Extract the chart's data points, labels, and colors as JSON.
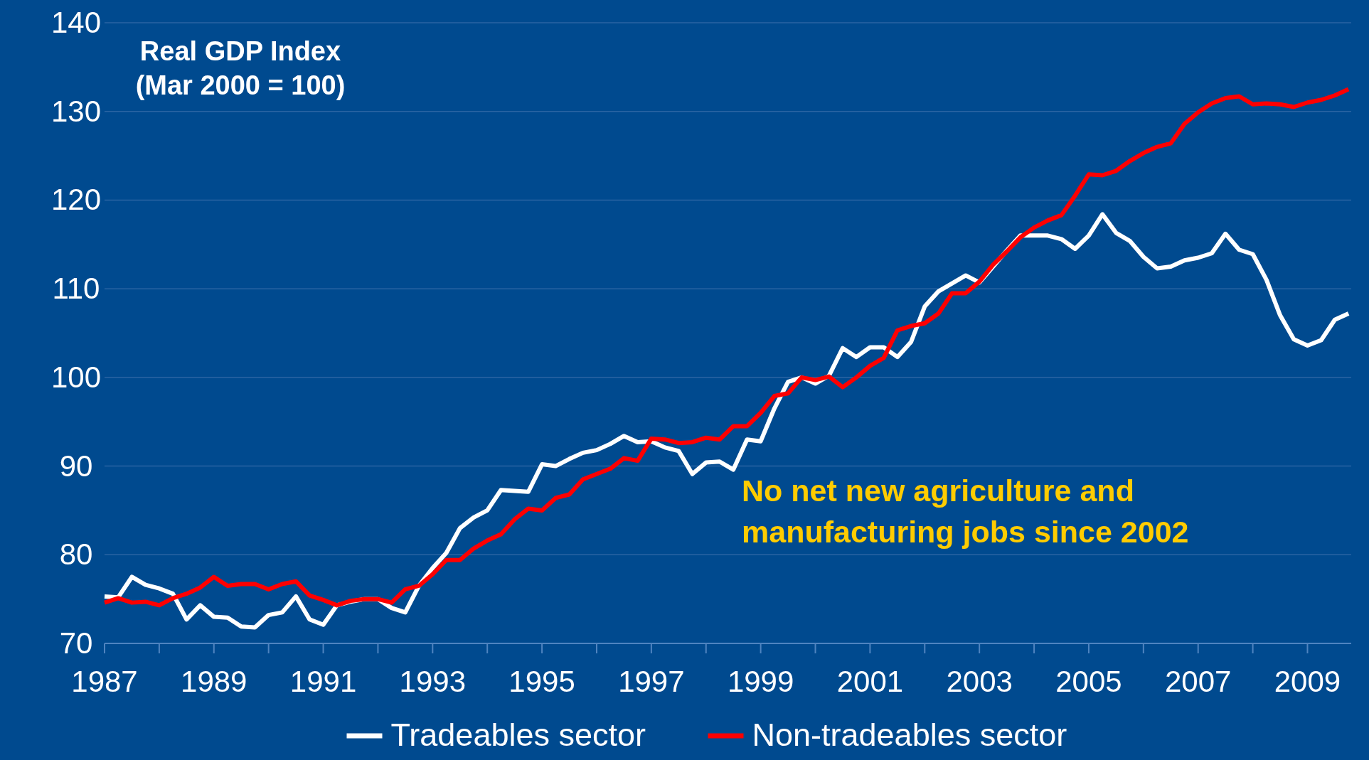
{
  "chart_data": {
    "type": "line",
    "title": "Real GDP Index",
    "subtitle": "(Mar 2000 = 100)",
    "annotations": [
      "No net new agriculture and\nmanufacturing jobs since 2002"
    ],
    "x": [
      1987,
      1987.25,
      1987.5,
      1987.75,
      1988,
      1988.25,
      1988.5,
      1988.75,
      1989,
      1989.25,
      1989.5,
      1989.75,
      1990,
      1990.25,
      1990.5,
      1990.75,
      1991,
      1991.25,
      1991.5,
      1991.75,
      1992,
      1992.25,
      1992.5,
      1992.75,
      1993,
      1993.25,
      1993.5,
      1993.75,
      1994,
      1994.25,
      1994.5,
      1994.75,
      1995,
      1995.25,
      1995.5,
      1995.75,
      1996,
      1996.25,
      1996.5,
      1996.75,
      1997,
      1997.25,
      1997.5,
      1997.75,
      1998,
      1998.25,
      1998.5,
      1998.75,
      1999,
      1999.25,
      1999.5,
      1999.75,
      2000,
      2000.25,
      2000.5,
      2000.75,
      2001,
      2001.25,
      2001.5,
      2001.75,
      2002,
      2002.25,
      2002.5,
      2002.75,
      2003,
      2003.25,
      2003.5,
      2003.75,
      2004,
      2004.25,
      2004.5,
      2004.75,
      2005,
      2005.25,
      2005.5,
      2005.75,
      2006,
      2006.25,
      2006.5,
      2006.75,
      2007,
      2007.25,
      2007.5,
      2007.75,
      2008,
      2008.25,
      2008.5,
      2008.75,
      2009,
      2009.25,
      2009.5,
      2009.75
    ],
    "series": [
      {
        "name": "Tradeables sector",
        "color": "#ffffff",
        "values": [
          75.3,
          75.2,
          77.5,
          76.6,
          76.2,
          75.6,
          72.7,
          74.3,
          73.0,
          72.9,
          71.9,
          71.8,
          73.2,
          73.5,
          75.3,
          72.7,
          72.1,
          74.3,
          74.7,
          75.0,
          75.0,
          74.0,
          73.5,
          76.5,
          78.5,
          80.2,
          83.0,
          84.2,
          85.0,
          87.3,
          87.2,
          87.1,
          90.2,
          90.0,
          90.8,
          91.5,
          91.8,
          92.5,
          93.4,
          92.7,
          92.8,
          92.1,
          91.7,
          89.1,
          90.4,
          90.5,
          89.6,
          93.0,
          92.8,
          96.5,
          99.5,
          100.0,
          99.3,
          100.2,
          103.3,
          102.3,
          103.4,
          103.4,
          102.3,
          104.0,
          108.0,
          109.7,
          110.6,
          111.5,
          110.7,
          112.5,
          114.3,
          116.0,
          116.0,
          116.0,
          115.6,
          114.5,
          116.0,
          118.4,
          116.3,
          115.4,
          113.6,
          112.3,
          112.5,
          113.2,
          113.5,
          114.0,
          116.2,
          114.4,
          113.9,
          111.0,
          107.0,
          104.3,
          103.6,
          104.2,
          106.5,
          107.2
        ]
      },
      {
        "name": "Non-tradeables sector",
        "color": "#ff0000",
        "values": [
          74.6,
          75.1,
          74.6,
          74.7,
          74.3,
          75.1,
          75.6,
          76.3,
          77.5,
          76.5,
          76.7,
          76.7,
          76.1,
          76.7,
          77.0,
          75.4,
          74.9,
          74.3,
          74.8,
          75.0,
          75.0,
          74.6,
          76.1,
          76.5,
          77.8,
          79.4,
          79.4,
          80.7,
          81.6,
          82.3,
          84.0,
          85.2,
          85.0,
          86.4,
          86.8,
          88.5,
          89.1,
          89.7,
          90.9,
          90.6,
          93.1,
          93.0,
          92.6,
          92.7,
          93.2,
          93.0,
          94.5,
          94.5,
          96.0,
          97.9,
          98.2,
          100.0,
          99.7,
          100.1,
          98.9,
          100.0,
          101.3,
          102.2,
          105.3,
          105.8,
          106.1,
          107.2,
          109.5,
          109.5,
          110.8,
          112.7,
          114.2,
          115.8,
          116.9,
          117.7,
          118.3,
          120.5,
          122.9,
          122.8,
          123.3,
          124.4,
          125.3,
          126.0,
          126.4,
          128.6,
          129.9,
          130.9,
          131.5,
          131.7,
          130.8,
          130.9,
          130.8,
          130.5,
          131.0,
          131.3,
          131.8,
          132.5
        ]
      }
    ],
    "xlim": [
      1987,
      2009.8
    ],
    "xticks": [
      1987,
      {
        "value": 1988,
        "label": null
      },
      1989,
      {
        "value": 1990,
        "label": null
      },
      1991,
      {
        "value": 1992,
        "label": null
      },
      1993,
      {
        "value": 1994,
        "label": null
      },
      1995,
      {
        "value": 1996,
        "label": null
      },
      1997,
      {
        "value": 1998,
        "label": null
      },
      1999,
      {
        "value": 2000,
        "label": null
      },
      2001,
      {
        "value": 2002,
        "label": null
      },
      2003,
      {
        "value": 2004,
        "label": null
      },
      2005,
      {
        "value": 2006,
        "label": null
      },
      2007,
      {
        "value": 2008,
        "label": null
      },
      2009
    ],
    "ylim": [
      70,
      140
    ],
    "yticks": [
      70,
      80,
      90,
      100,
      110,
      120,
      130,
      140
    ],
    "grid": "y",
    "legend": "bottom",
    "line_style": "solid",
    "marker": "none"
  }
}
